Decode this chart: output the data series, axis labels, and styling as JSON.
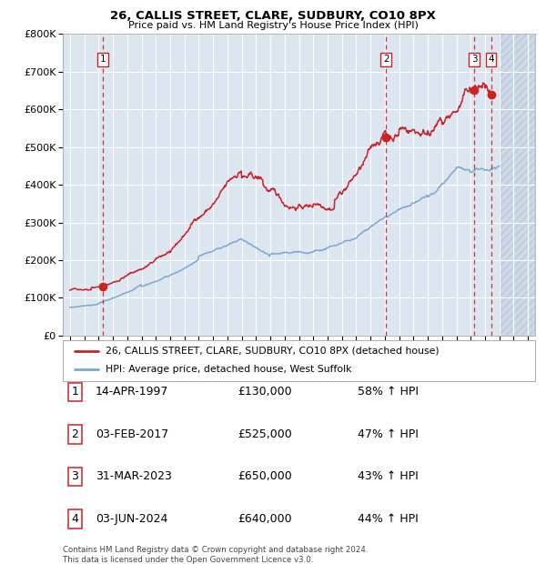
{
  "title1": "26, CALLIS STREET, CLARE, SUDBURY, CO10 8PX",
  "title2": "Price paid vs. HM Land Registry's House Price Index (HPI)",
  "ylim": [
    0,
    800000
  ],
  "yticks": [
    0,
    100000,
    200000,
    300000,
    400000,
    500000,
    600000,
    700000,
    800000
  ],
  "ytick_labels": [
    "£0",
    "£100K",
    "£200K",
    "£300K",
    "£400K",
    "£500K",
    "£600K",
    "£700K",
    "£800K"
  ],
  "sale_dates": [
    1997.29,
    2017.09,
    2023.25,
    2024.42
  ],
  "sale_prices": [
    130000,
    525000,
    650000,
    640000
  ],
  "sale_labels": [
    "1",
    "2",
    "3",
    "4"
  ],
  "hpi_color": "#7ba7d4",
  "price_color": "#cc2222",
  "sale_dot_color": "#cc2222",
  "vline_color": "#cc2222",
  "bg_color": "#dce6f1",
  "grid_color": "#ffffff",
  "legend_line1": "26, CALLIS STREET, CLARE, SUDBURY, CO10 8PX (detached house)",
  "legend_line2": "HPI: Average price, detached house, West Suffolk",
  "table": [
    [
      "1",
      "14-APR-1997",
      "£130,000",
      "58% ↑ HPI"
    ],
    [
      "2",
      "03-FEB-2017",
      "£525,000",
      "47% ↑ HPI"
    ],
    [
      "3",
      "31-MAR-2023",
      "£650,000",
      "43% ↑ HPI"
    ],
    [
      "4",
      "03-JUN-2024",
      "£640,000",
      "44% ↑ HPI"
    ]
  ],
  "footnote1": "Contains HM Land Registry data © Crown copyright and database right 2024.",
  "footnote2": "This data is licensed under the Open Government Licence v3.0.",
  "future_start": 2025.0,
  "xmin": 1994.5,
  "xmax": 2027.5,
  "xtick_start": 1995,
  "xtick_end": 2027
}
